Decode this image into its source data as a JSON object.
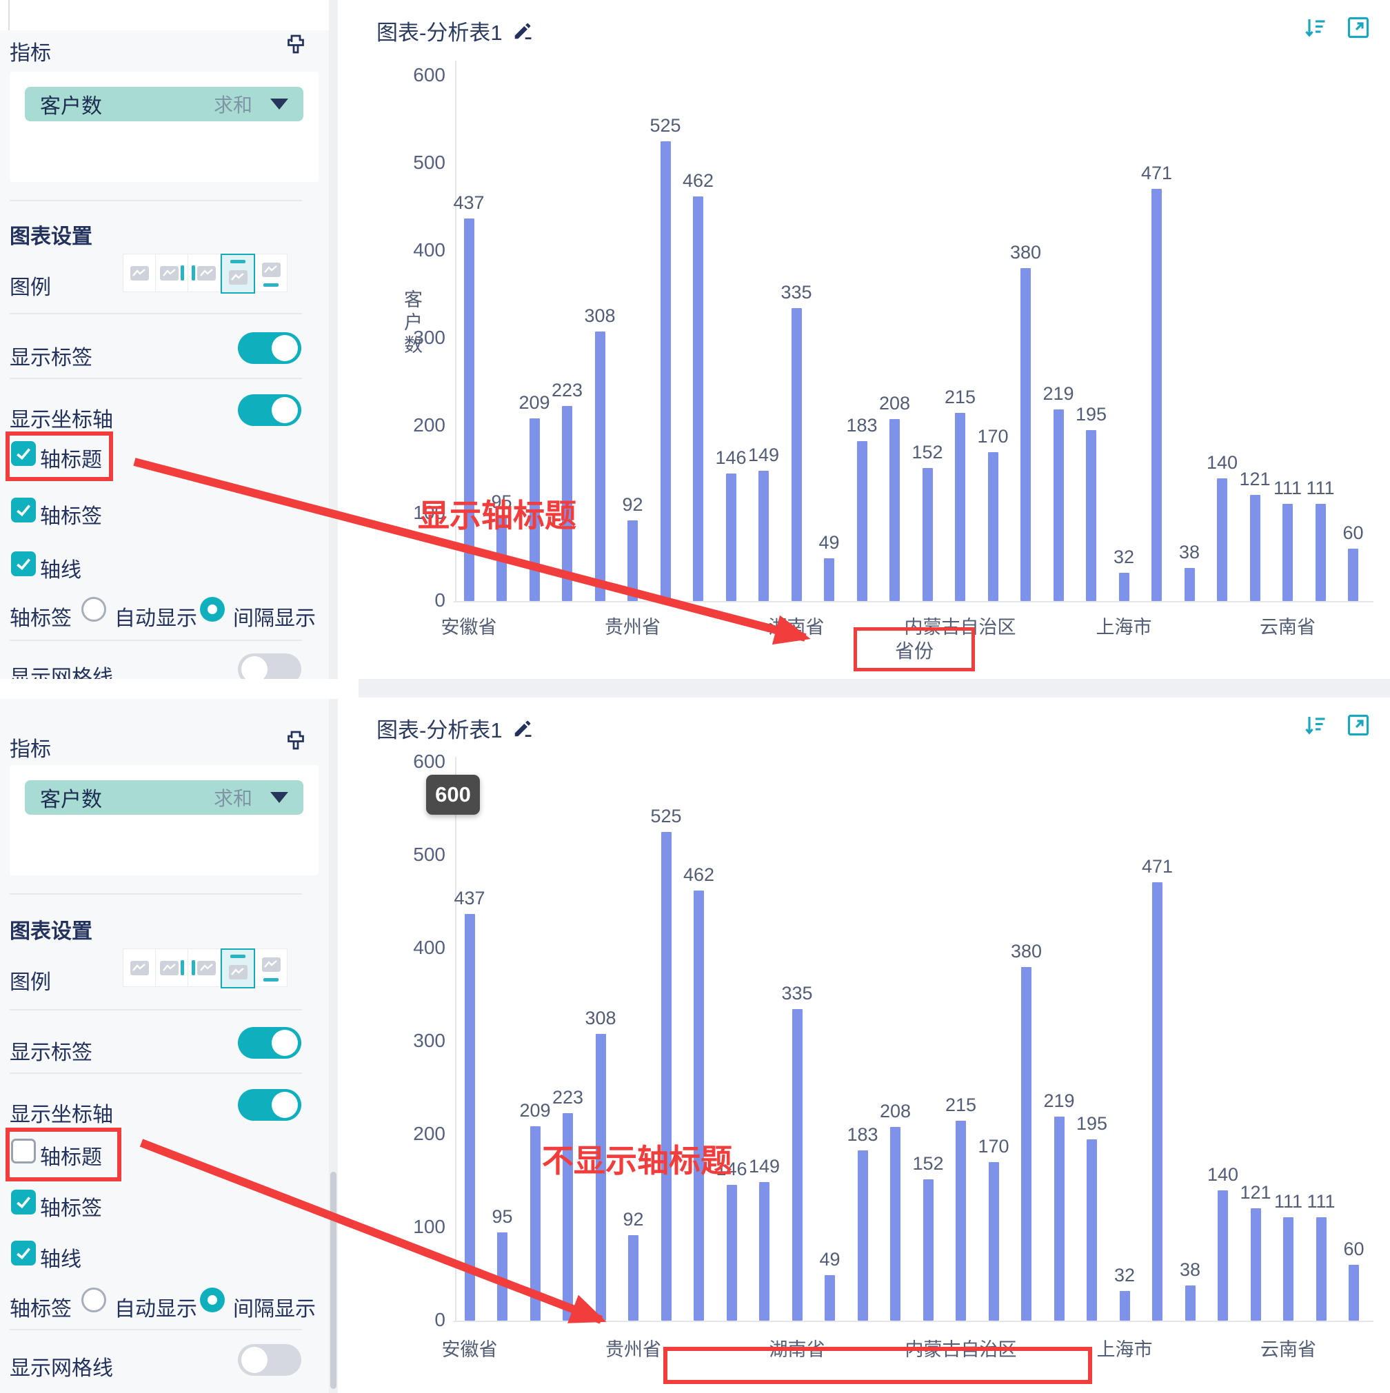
{
  "sidebar": {
    "indicator_title": "指标",
    "metric_pill": {
      "name": "客户数",
      "aggregation": "求和"
    },
    "settings_title": "图表设置",
    "legend_label": "图例",
    "legend_options": [
      "none",
      "right",
      "left",
      "top",
      "bottom"
    ],
    "legend_selected_index": 3,
    "show_label_toggle": {
      "label": "显示标签",
      "on": true
    },
    "show_axis_toggle": {
      "label": "显示坐标轴",
      "on": true
    },
    "axis_title_label": "轴标题",
    "axis_tick_label": "轴标签",
    "axis_line_label": "轴线",
    "tick_mode": {
      "label": "轴标签",
      "options": [
        "自动显示",
        "间隔显示"
      ],
      "selected": "间隔显示"
    },
    "show_grid_toggle": {
      "label": "显示网格线",
      "on": false
    },
    "panels": [
      {
        "axis_title_checked": true
      },
      {
        "axis_title_checked": false
      }
    ]
  },
  "charts": [
    {
      "title": "图表-分析表1",
      "y_axis_title": "客户数",
      "x_axis_title": "省份",
      "annotation": "显示轴标题"
    },
    {
      "title": "图表-分析表1",
      "annotation": "不显示轴标题",
      "tooltip_value": "600"
    }
  ],
  "chart_data": {
    "type": "bar",
    "title": "图表-分析表1",
    "ylabel": "客户数",
    "xlabel": "省份",
    "ylim": [
      0,
      600
    ],
    "yticks": [
      0,
      100,
      200,
      300,
      400,
      500,
      600
    ],
    "grid": false,
    "legend_position": "top",
    "bar_color": "#7d92e8",
    "values": [
      437,
      95,
      209,
      223,
      308,
      92,
      525,
      462,
      146,
      149,
      335,
      49,
      183,
      208,
      152,
      215,
      170,
      380,
      219,
      195,
      32,
      471,
      38,
      140,
      121,
      111,
      111,
      60
    ],
    "x_tick_labels": [
      {
        "index": 0,
        "label": "安徽省"
      },
      {
        "index": 5,
        "label": "贵州省"
      },
      {
        "index": 10,
        "label": "湖南省"
      },
      {
        "index": 15,
        "label": "内蒙古自治区"
      },
      {
        "index": 20,
        "label": "上海市"
      },
      {
        "index": 25,
        "label": "云南省"
      }
    ],
    "tick_label_mode": "间隔显示"
  },
  "colors": {
    "accent": "#0fafbe",
    "bar": "#7d92e8",
    "annotation_red": "#f23d3d",
    "navy": "#22325c"
  }
}
